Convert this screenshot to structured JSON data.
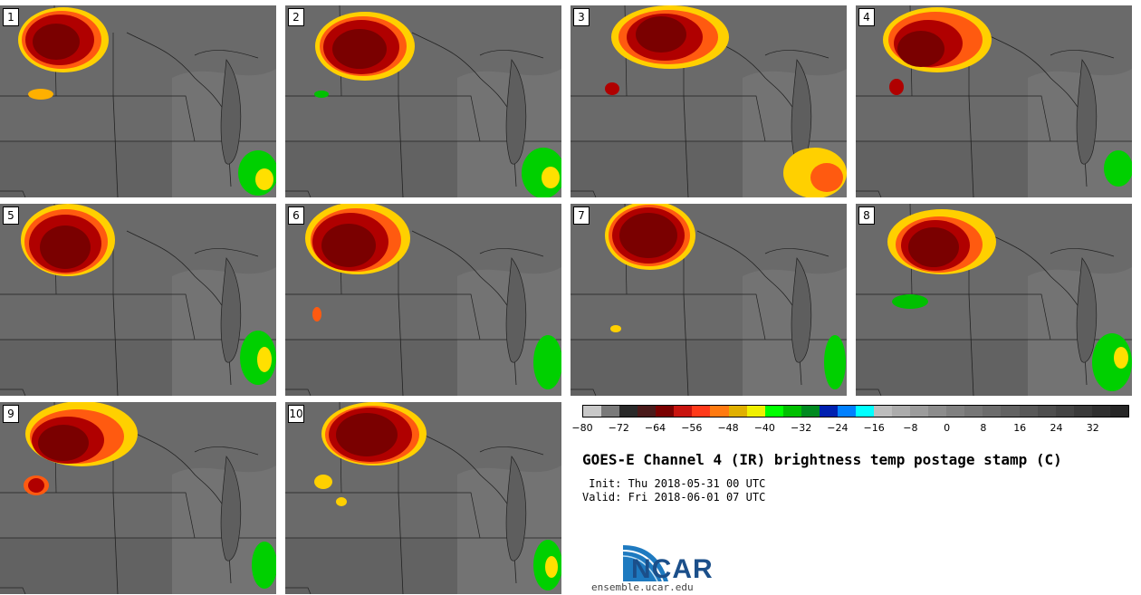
{
  "panels": [
    {
      "label": "1"
    },
    {
      "label": "2"
    },
    {
      "label": "3"
    },
    {
      "label": "4"
    },
    {
      "label": "5"
    },
    {
      "label": "6"
    },
    {
      "label": "7"
    },
    {
      "label": "8"
    },
    {
      "label": "9"
    },
    {
      "label": "10"
    }
  ],
  "colorbar": {
    "colors": [
      "#c8c8c8",
      "#7a7a7a",
      "#2a2a2a",
      "#4a1a1a",
      "#7a0000",
      "#c8140f",
      "#ff3a1a",
      "#ff7a10",
      "#e0b000",
      "#f0f000",
      "#00ff00",
      "#00c000",
      "#008a20",
      "#0020b0",
      "#0080ff",
      "#00ffff",
      "#bdbdbd",
      "#acacac",
      "#9c9c9c",
      "#8c8c8c",
      "#808080",
      "#767676",
      "#6c6c6c",
      "#626262",
      "#585858",
      "#4e4e4e",
      "#444444",
      "#3a3a3a",
      "#303030",
      "#262626"
    ],
    "ticks": [
      "−80",
      "−72",
      "−64",
      "−56",
      "−48",
      "−40",
      "−32",
      "−24",
      "−16",
      "−8",
      "0",
      "8",
      "16",
      "24",
      "32"
    ]
  },
  "title": "GOES-E Channel 4 (IR) brightness temp postage stamp (C)",
  "init_line": " Init: Thu 2018-05-31 00 UTC",
  "valid_line": "Valid: Fri 2018-06-01 07 UTC",
  "logo_text": "NCAR",
  "url": "ensemble.ucar.edu"
}
